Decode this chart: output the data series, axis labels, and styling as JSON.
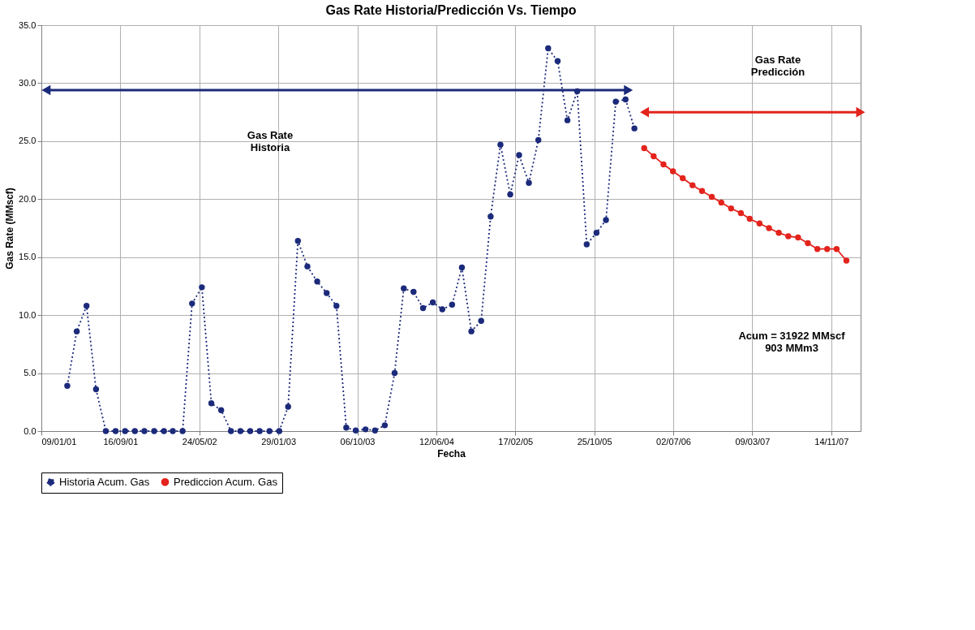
{
  "chart_data": {
    "type": "line",
    "title": "Gas Rate Historia/Predicción Vs. Tiempo",
    "xlabel": "Fecha",
    "ylabel": "Gas Rate (MMscf)",
    "xlim": [
      "2001-01-09",
      "2008-02-15"
    ],
    "xticks": [
      {
        "value": "2001-01-09",
        "label": "09/01/01"
      },
      {
        "value": "2001-09-16",
        "label": "16/09/01"
      },
      {
        "value": "2002-05-24",
        "label": "24/05/02"
      },
      {
        "value": "2003-01-29",
        "label": "29/01/03"
      },
      {
        "value": "2003-10-06",
        "label": "06/10/03"
      },
      {
        "value": "2004-06-12",
        "label": "12/06/04"
      },
      {
        "value": "2005-02-17",
        "label": "17/02/05"
      },
      {
        "value": "2005-10-25",
        "label": "25/10/05"
      },
      {
        "value": "2006-07-02",
        "label": "02/07/06"
      },
      {
        "value": "2007-03-09",
        "label": "09/03/07"
      },
      {
        "value": "2007-11-14",
        "label": "14/11/07"
      }
    ],
    "ylim": [
      0,
      35
    ],
    "yticks": [
      {
        "value": 0,
        "label": "0.0"
      },
      {
        "value": 5,
        "label": "5.0"
      },
      {
        "value": 10,
        "label": "10.0"
      },
      {
        "value": 15,
        "label": "15.0"
      },
      {
        "value": 20,
        "label": "20.0"
      },
      {
        "value": 25,
        "label": "25.0"
      },
      {
        "value": 30,
        "label": "30.0"
      },
      {
        "value": 35,
        "label": "35.0"
      }
    ],
    "grid": true,
    "legend": "bottom",
    "marker": "circle",
    "series": [
      {
        "name": "Historia Acum. Gas",
        "color": "#1b2a7a",
        "line_style": "dotted",
        "x": [
          "2001-04",
          "2001-05",
          "2001-06",
          "2001-07",
          "2001-08",
          "2001-09",
          "2001-10",
          "2001-11",
          "2001-12",
          "2002-01",
          "2002-02",
          "2002-03",
          "2002-04",
          "2002-05",
          "2002-06",
          "2002-07",
          "2002-08",
          "2002-09",
          "2002-10",
          "2002-11",
          "2002-12",
          "2003-01",
          "2003-02",
          "2003-03",
          "2003-04",
          "2003-05",
          "2003-06",
          "2003-07",
          "2003-08",
          "2003-09",
          "2003-10",
          "2003-11",
          "2003-12",
          "2004-01",
          "2004-02",
          "2004-03",
          "2004-04",
          "2004-05",
          "2004-06",
          "2004-07",
          "2004-08",
          "2004-09",
          "2004-10",
          "2004-11",
          "2004-12",
          "2005-01",
          "2005-02",
          "2005-03",
          "2005-04",
          "2005-05",
          "2005-06",
          "2005-07",
          "2005-08",
          "2005-09",
          "2005-10",
          "2005-11",
          "2005-12",
          "2006-01",
          "2006-02",
          "2006-03"
        ],
        "values": [
          3.9,
          8.6,
          10.8,
          3.6,
          0,
          0,
          0,
          0,
          0,
          0,
          0,
          0,
          0,
          11.0,
          12.4,
          2.4,
          1.8,
          0,
          0,
          0,
          0,
          0,
          0,
          2.1,
          16.4,
          14.2,
          12.9,
          11.9,
          10.8,
          0.3,
          0.05,
          0.15,
          0.05,
          0.5,
          5.0,
          12.3,
          12.0,
          10.6,
          11.1,
          10.5,
          10.9,
          14.1,
          8.6,
          9.5,
          18.5,
          24.7,
          20.4,
          23.8,
          21.4,
          25.1,
          33.0,
          31.9,
          26.8,
          29.3,
          16.1,
          17.1,
          18.2,
          28.4,
          28.6,
          26.1
        ]
      },
      {
        "name": "Prediccion Acum. Gas",
        "color": "#e3231c",
        "line_style": "solid",
        "x": [
          "2006-04",
          "2006-05",
          "2006-06",
          "2006-07",
          "2006-08",
          "2006-09",
          "2006-10",
          "2006-11",
          "2006-12",
          "2007-01",
          "2007-02",
          "2007-03",
          "2007-04",
          "2007-05",
          "2007-06",
          "2007-07",
          "2007-08",
          "2007-09",
          "2007-10",
          "2007-11",
          "2007-12",
          "2008-01"
        ],
        "values": [
          24.4,
          23.7,
          23.0,
          22.4,
          21.8,
          21.2,
          20.7,
          20.2,
          19.7,
          19.2,
          18.8,
          18.3,
          17.9,
          17.5,
          17.1,
          16.8,
          16.7,
          16.2,
          15.7,
          15.7,
          15.7,
          14.7
        ]
      },
      {
        "type": "line",
        "color": "#1b2a7a",
        "marker": "triangle",
        "line_style": "solid",
        "x": [
          "2001-01-24",
          "2006-02-10"
        ],
        "values": [
          29.4,
          29.4
        ]
      },
      {
        "type": "line",
        "color": "#e3231c",
        "marker": "triangle",
        "line_style": "solid",
        "x": [
          "2006-04-02",
          "2008-02-15"
        ],
        "values": [
          27.5,
          27.5
        ]
      }
    ],
    "annotations": [
      "Gas Rate\nHistoria",
      "Gas Rate\nPredicción",
      "Acum =  31922 MMscf\n903 MMm3"
    ]
  }
}
